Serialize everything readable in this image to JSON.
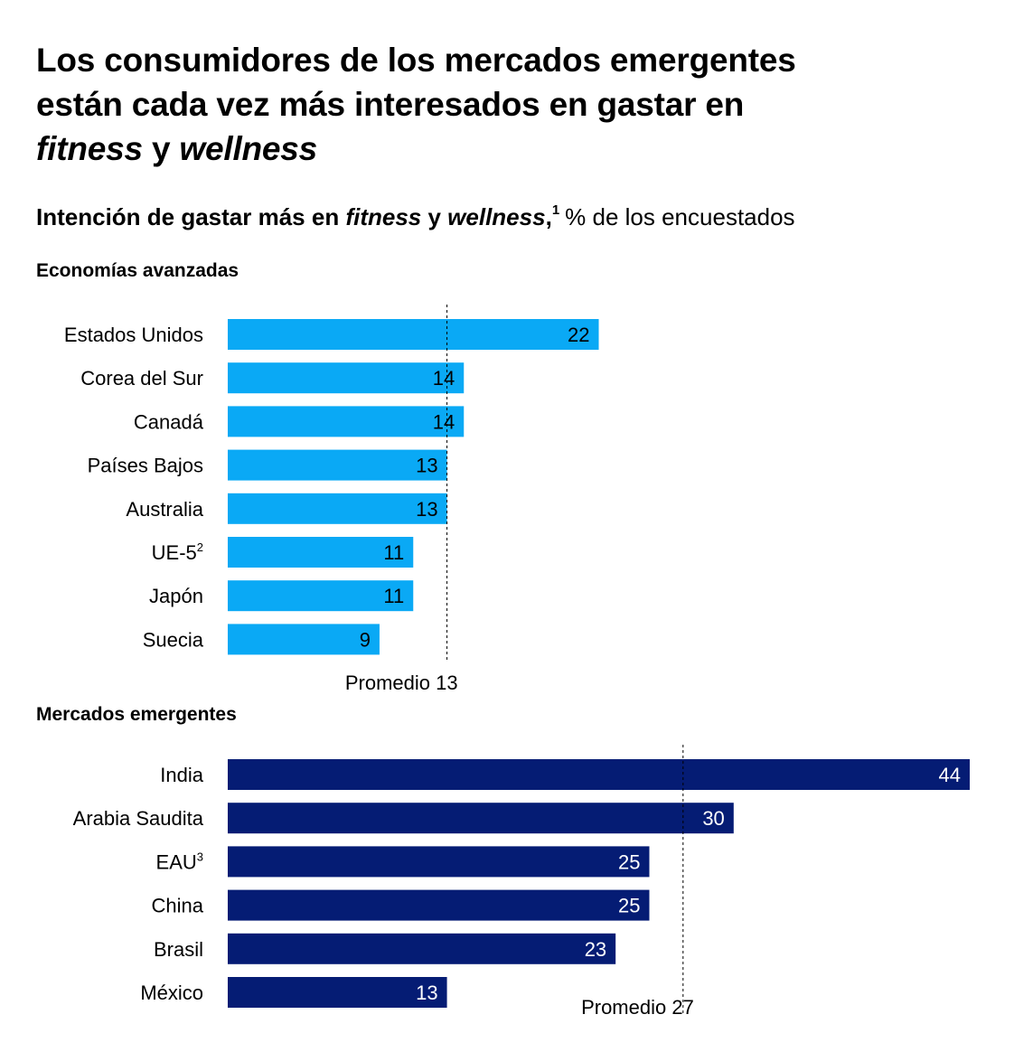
{
  "title": {
    "line1": "Los consumidores de los mercados emergentes",
    "line2": "están cada vez más interesados en gastar en",
    "line3_em1": "fitness",
    "line3_mid": " y ",
    "line3_em2": "wellness"
  },
  "subtitle": {
    "part1": "Intención de gastar más en ",
    "em1": "fitness",
    "part2": " y ",
    "em2": "wellness",
    "part3": ",",
    "footnote": "1",
    "unit": "% de los encuestados"
  },
  "colors": {
    "advanced": "#0aa9f5",
    "emerging": "#051c74",
    "text": "#000000"
  },
  "chart_data": [
    {
      "type": "bar",
      "orientation": "horizontal",
      "title": "Economías avanzadas",
      "categories": [
        "Estados Unidos",
        "Corea del Sur",
        "Canadá",
        "Países Bajos",
        "Australia",
        "UE-5",
        "Japón",
        "Suecia"
      ],
      "category_footnotes": [
        "",
        "",
        "",
        "",
        "",
        "2",
        "",
        ""
      ],
      "values": [
        22,
        14,
        14,
        13,
        13,
        11,
        11,
        9
      ],
      "average": 13,
      "average_label": "Promedio 13",
      "color": "#0aa9f5",
      "label_color": "#000000",
      "xlim": [
        0,
        44
      ]
    },
    {
      "type": "bar",
      "orientation": "horizontal",
      "title": "Mercados emergentes",
      "categories": [
        "India",
        "Arabia Saudita",
        "EAU",
        "China",
        "Brasil",
        "México"
      ],
      "category_footnotes": [
        "",
        "",
        "3",
        "",
        "",
        ""
      ],
      "values": [
        44,
        30,
        25,
        25,
        23,
        13
      ],
      "average": 27,
      "average_label": "Promedio 27",
      "color": "#051c74",
      "label_color": "#ffffff",
      "xlim": [
        0,
        44
      ]
    }
  ]
}
